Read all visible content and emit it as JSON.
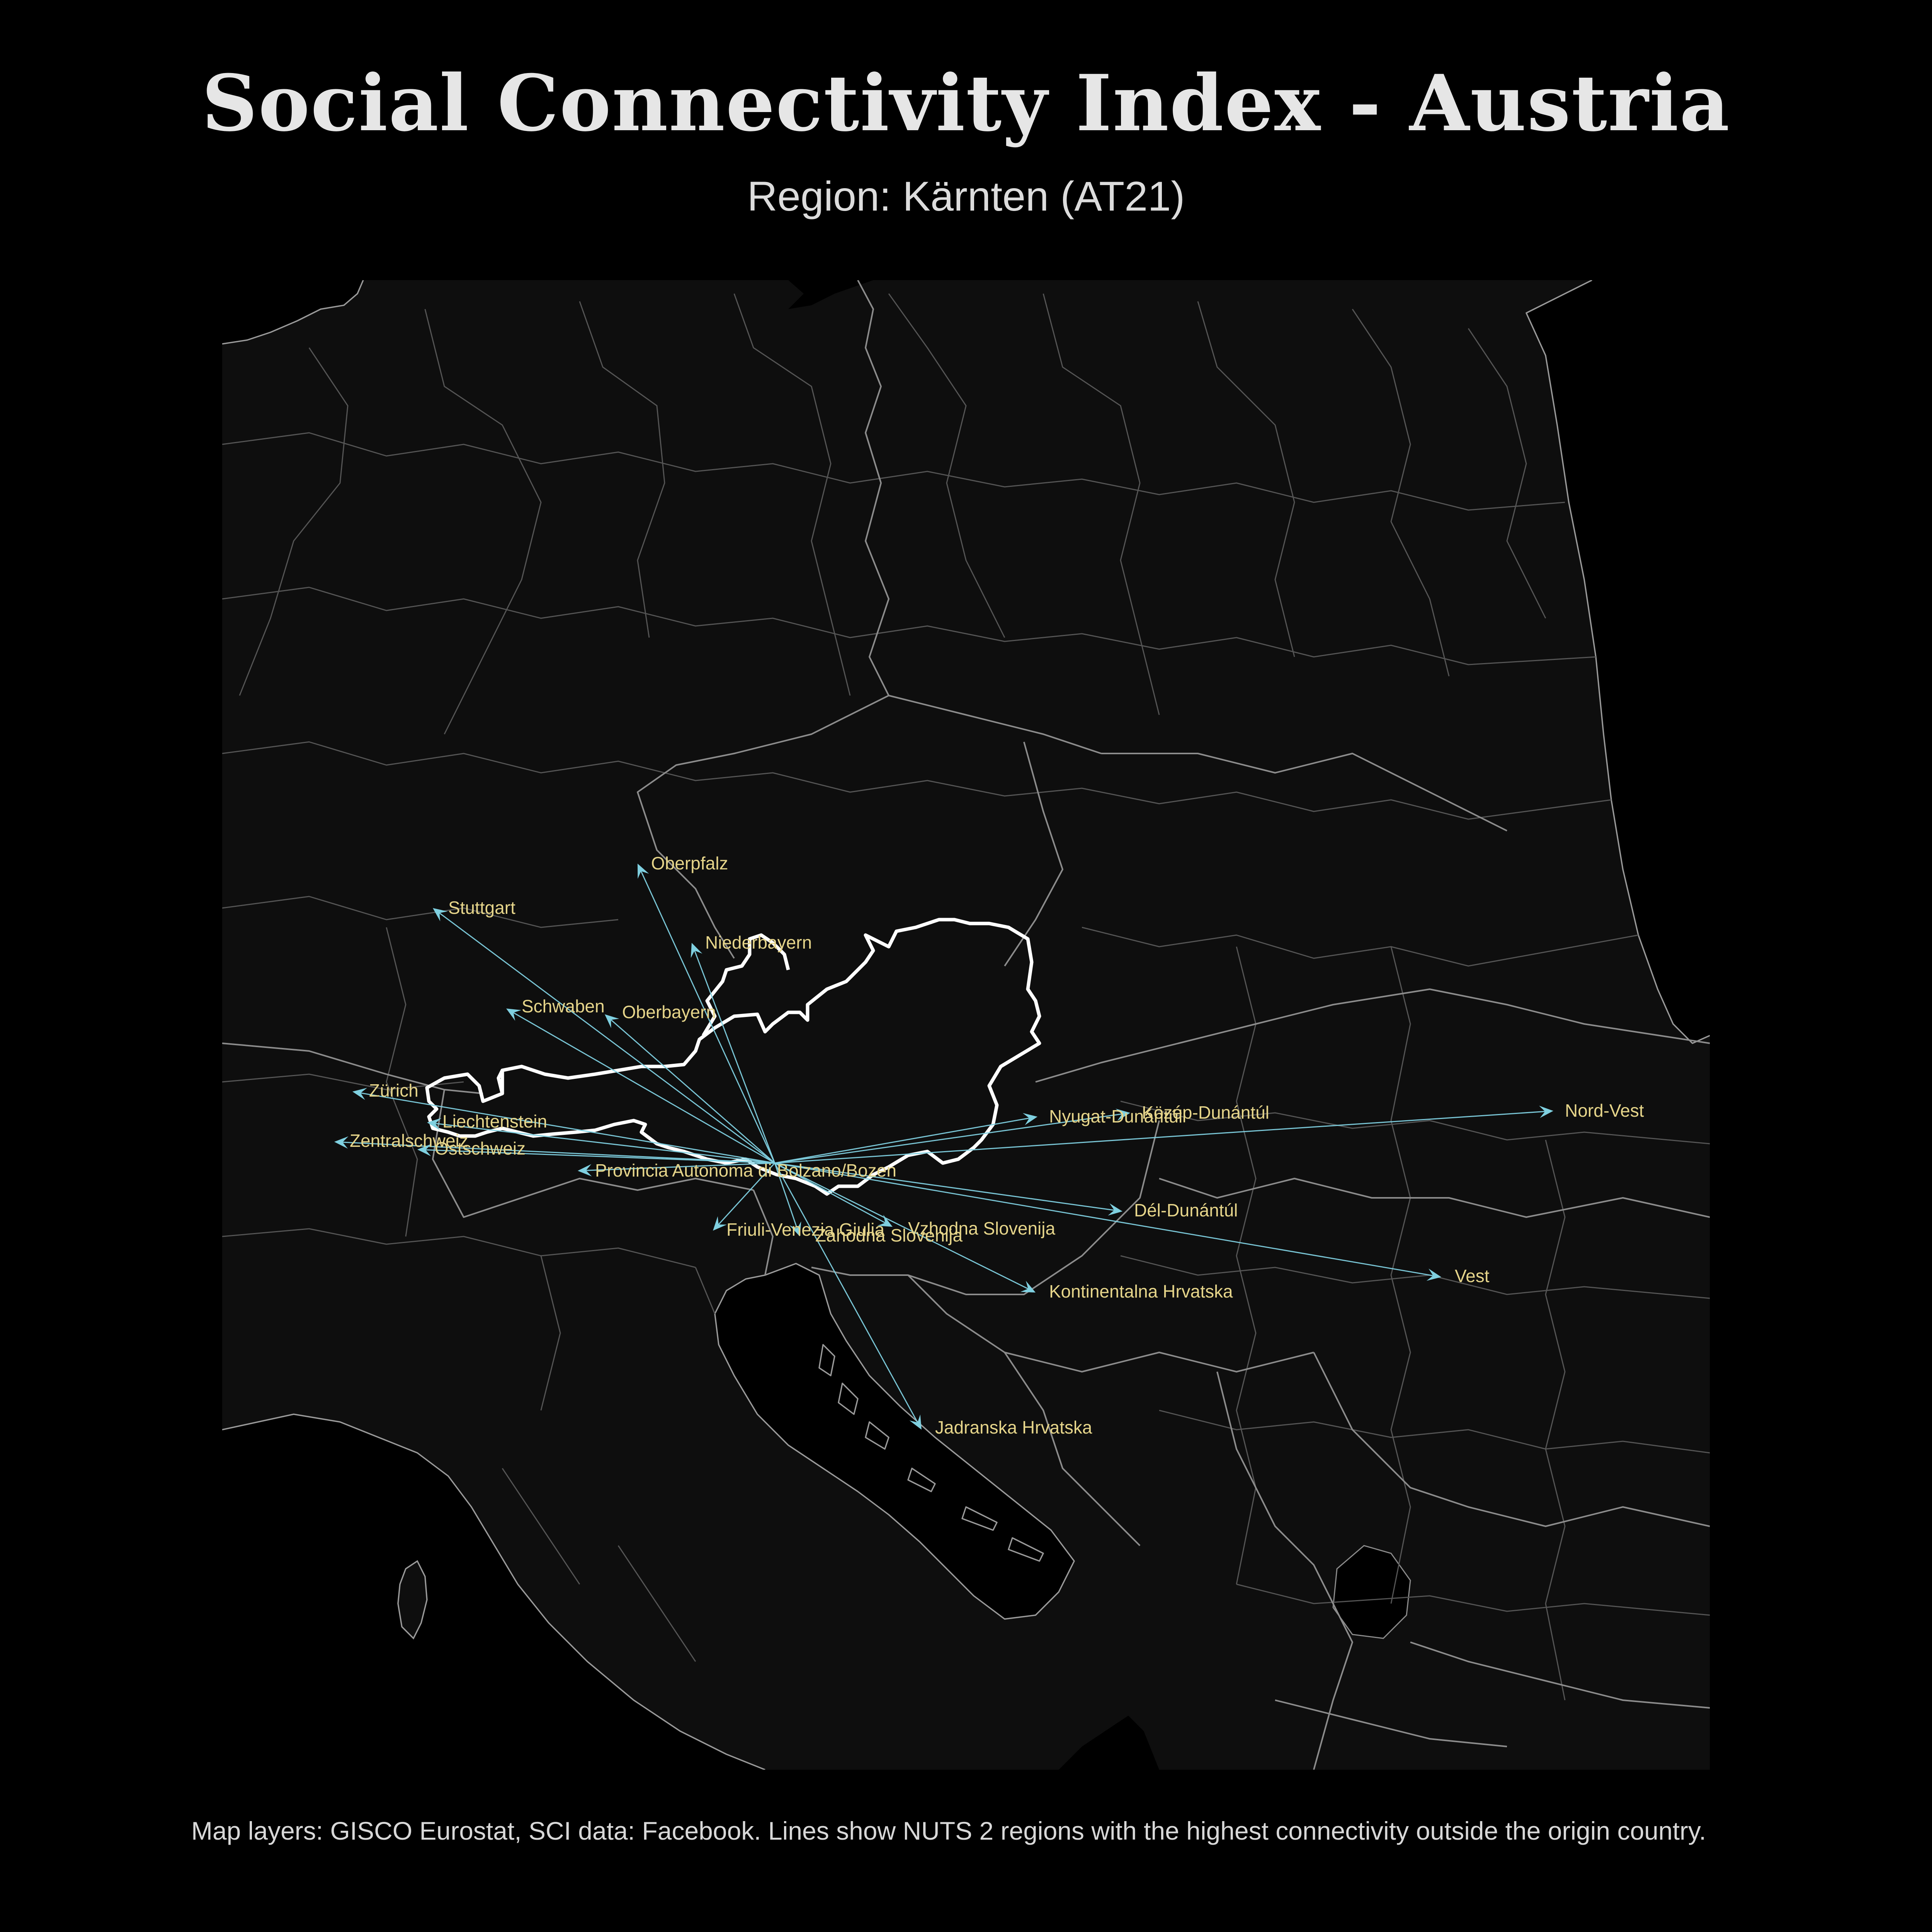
{
  "title": "Social Connectivity Index - Austria",
  "subtitle": "Region: Kärnten (AT21)",
  "caption": "Map layers: GISCO Eurostat, SCI data: Facebook. Lines show NUTS 2 regions with the highest connectivity outside the origin country.",
  "colors": {
    "background": "#000000",
    "land": "#0e0e0e",
    "sea": "#000000",
    "region_border": "#555555",
    "austria_outline": "#ffffff",
    "flow_line": "#7fd0e0",
    "label_text": "#e6d58a"
  },
  "map_data": {
    "origin": "Kärnten (AT21)",
    "destinations": [
      {
        "name": "Oberpfalz"
      },
      {
        "name": "Stuttgart"
      },
      {
        "name": "Niederbayern"
      },
      {
        "name": "Schwaben"
      },
      {
        "name": "Oberbayern"
      },
      {
        "name": "Zürich"
      },
      {
        "name": "Liechtenstein"
      },
      {
        "name": "Zentralschweiz"
      },
      {
        "name": "Ostschweiz"
      },
      {
        "name": "Provincia Autonoma di Bolzano/Bozen"
      },
      {
        "name": "Friuli-Venezia Giulia"
      },
      {
        "name": "Zahodna Slovenija"
      },
      {
        "name": "Vzhodna Slovenija"
      },
      {
        "name": "Nyugat-Dunántúl"
      },
      {
        "name": "Közép-Dunántúl"
      },
      {
        "name": "Nord-Vest"
      },
      {
        "name": "Dél-Dunántúl"
      },
      {
        "name": "Vest"
      },
      {
        "name": "Kontinentalna Hrvatska"
      },
      {
        "name": "Jadranska Hrvatska"
      }
    ]
  }
}
